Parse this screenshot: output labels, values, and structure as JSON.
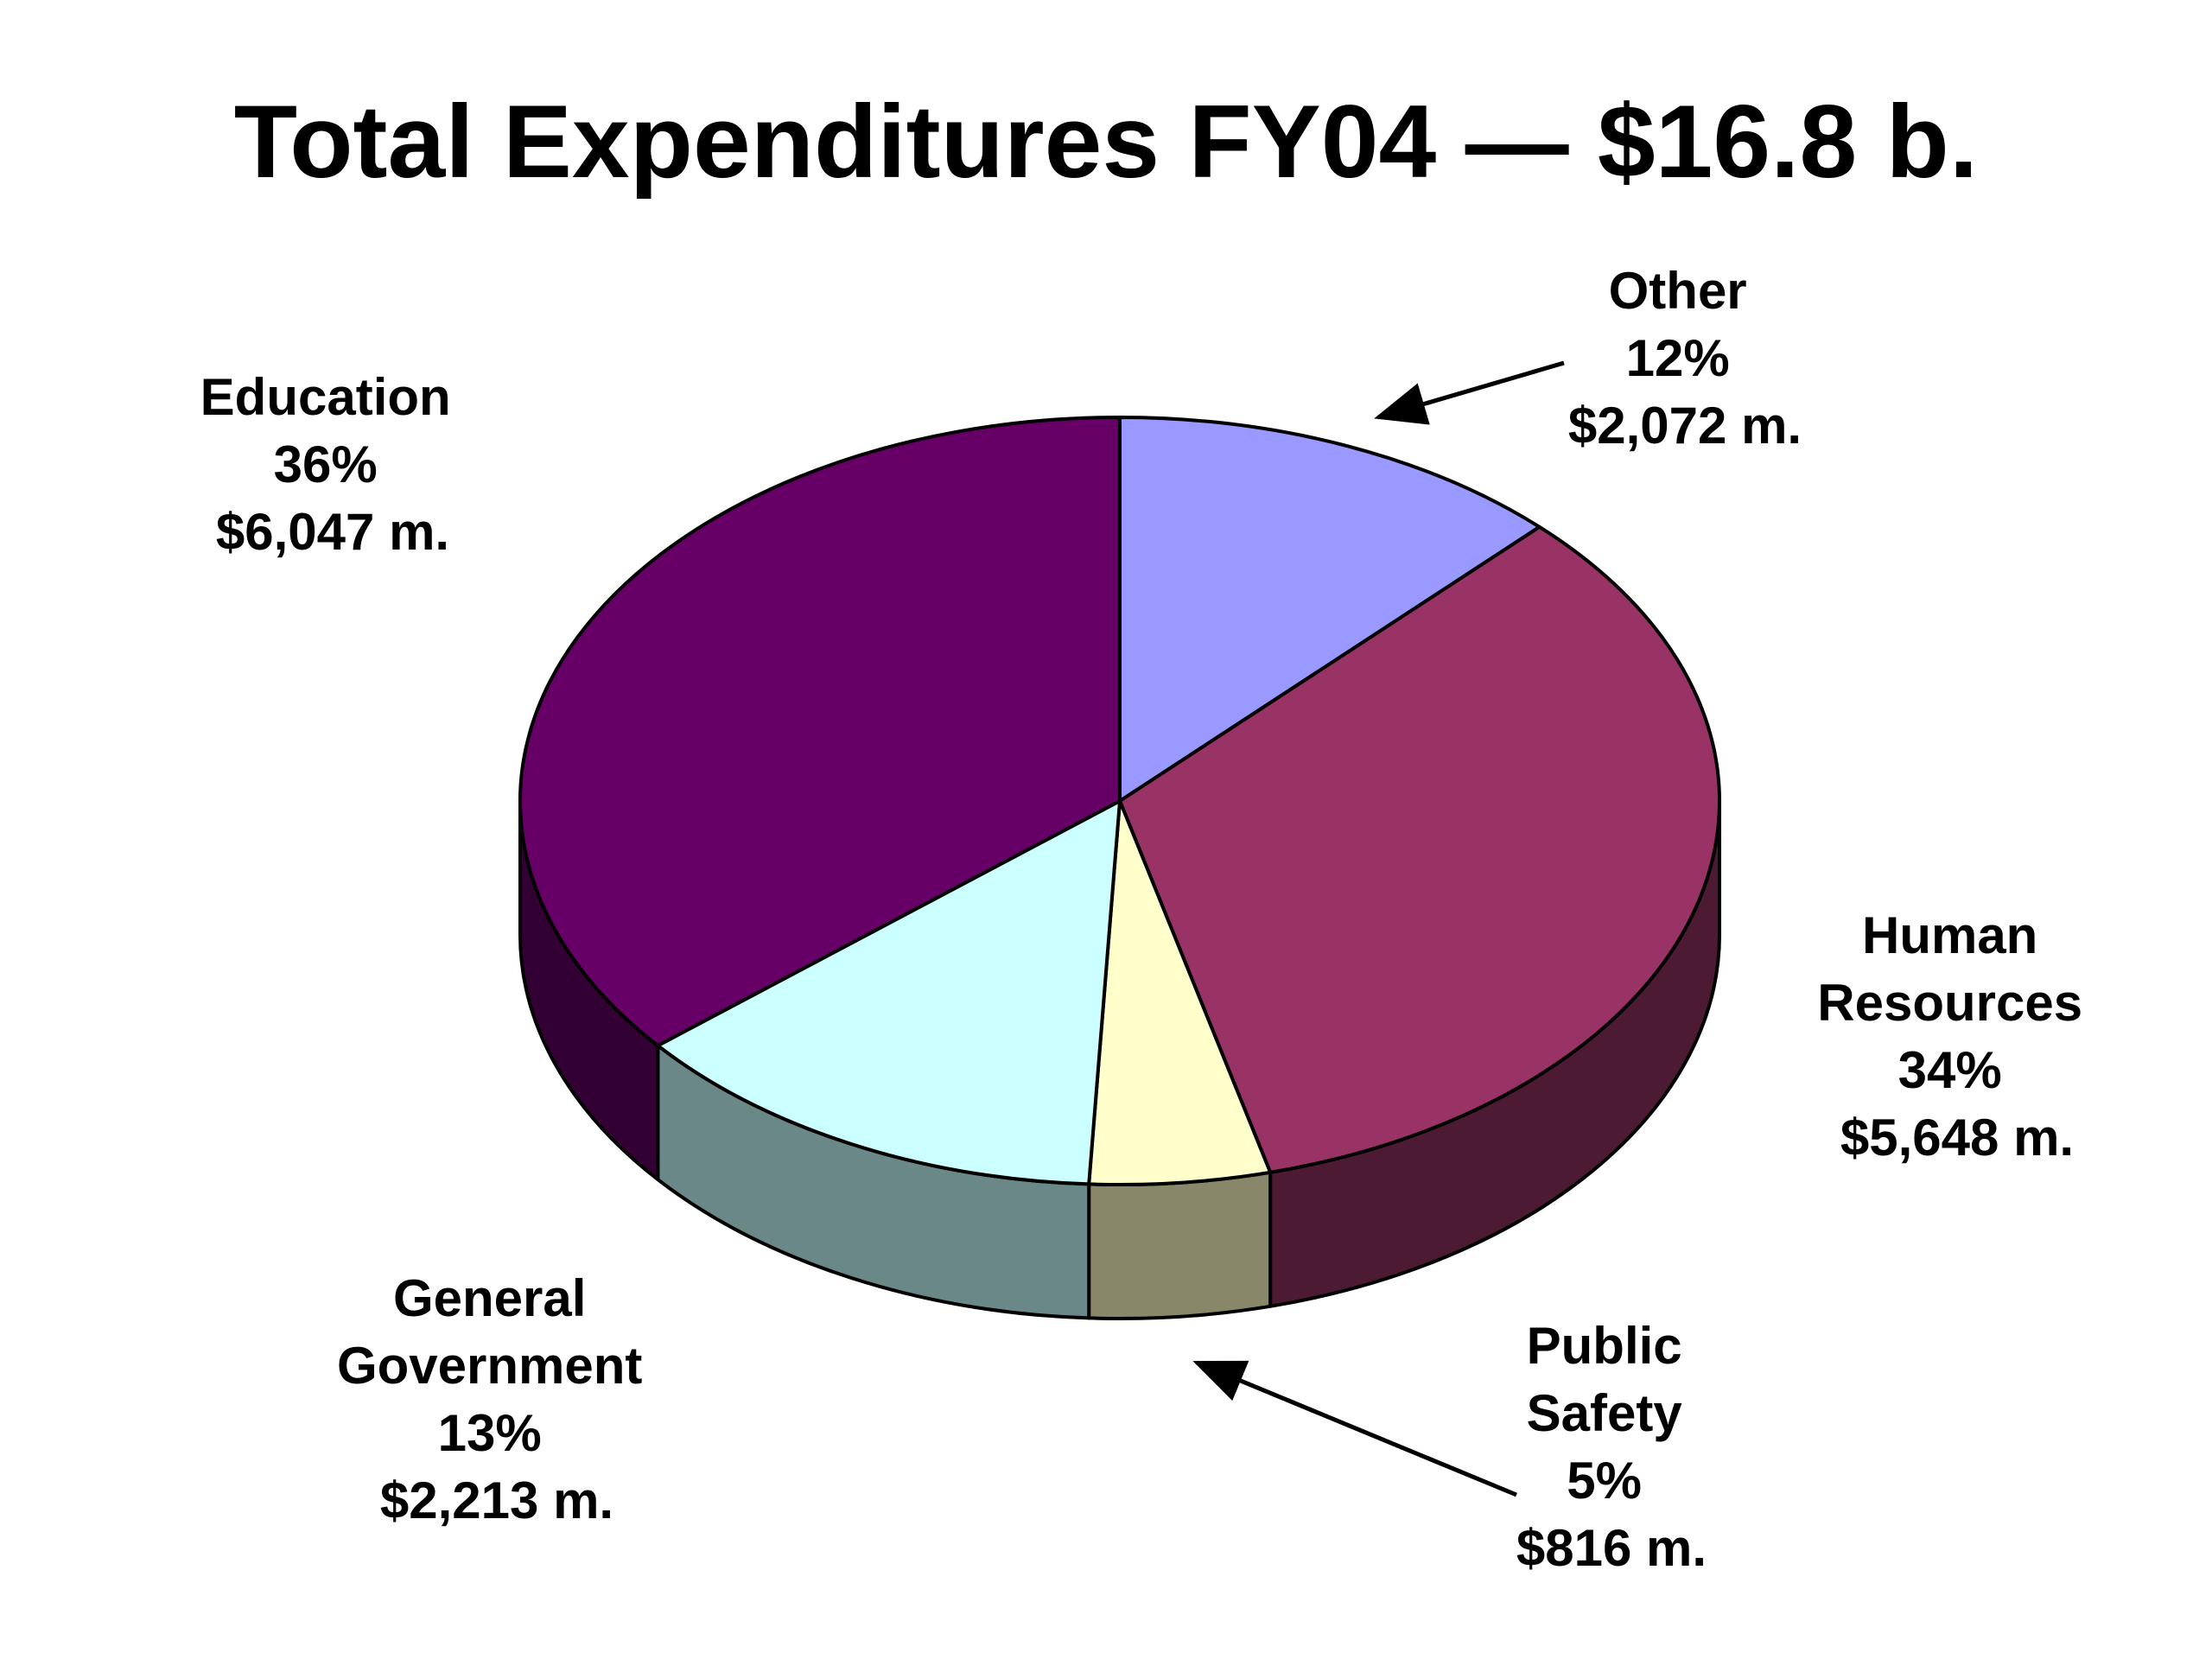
{
  "chart_data": {
    "type": "pie",
    "title": "Total Expenditures FY04 — $16.8 b.",
    "slices": [
      {
        "name": "Other",
        "percent_label": "12%",
        "amount_label": "$2,072 m.",
        "value": 2072,
        "color": "#9999ff",
        "side_color": "#5c5c99"
      },
      {
        "name": "Human Resources",
        "percent_label": "34%",
        "amount_label": "$5,648 m.",
        "value": 5648,
        "color": "#993366",
        "side_color": "#4d1a33"
      },
      {
        "name": "Public Safety",
        "percent_label": "5%",
        "amount_label": "$816 m.",
        "value": 816,
        "color": "#ffffcc",
        "side_color": "#88876a"
      },
      {
        "name": "General Government",
        "percent_label": "13%",
        "amount_label": "$2,213 m.",
        "value": 2213,
        "color": "#ccffff",
        "side_color": "#6b8888"
      },
      {
        "name": "Education",
        "percent_label": "36%",
        "amount_label": "$6,047 m.",
        "value": 6047,
        "color": "#660066",
        "side_color": "#330033"
      }
    ]
  }
}
